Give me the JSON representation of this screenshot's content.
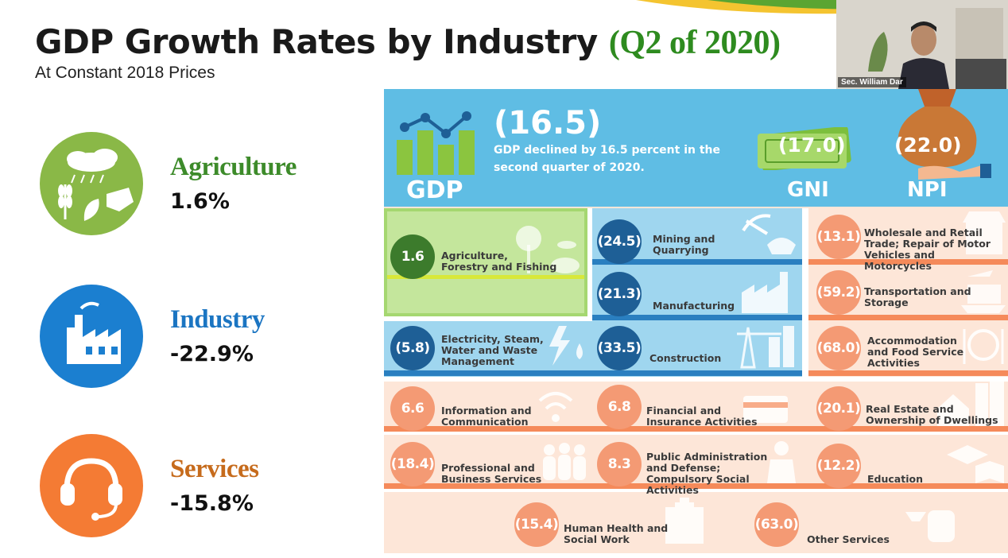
{
  "slide": {
    "title": "GDP Growth Rates by Industry",
    "title_period": "(Q2 of 2020)",
    "subtitle": "At Constant 2018 Prices"
  },
  "sectors": [
    {
      "name": "Agriculture",
      "value": "1.6%",
      "color": "#8ab847",
      "icon": "agriculture-icon"
    },
    {
      "name": "Industry",
      "value": "-22.9%",
      "color": "#1b7fd0",
      "icon": "factory-icon"
    },
    {
      "name": "Services",
      "value": "-15.8%",
      "color": "#f47b34",
      "icon": "headset-icon"
    }
  ],
  "video": {
    "speaker_name": "Sec. William Dar"
  },
  "infographic": {
    "gdp_value": "(16.5)",
    "gdp_description": "GDP declined by 16.5 percent in the second quarter of 2020.",
    "gdp_label": "GDP",
    "gni_value": "(17.0)",
    "gni_label": "GNI",
    "npi_value": "(22.0)",
    "npi_label": "NPI",
    "industries": [
      {
        "value": "1.6",
        "label": "Agriculture, Forestry and Fishing"
      },
      {
        "value": "(24.5)",
        "label": "Mining and Quarrying"
      },
      {
        "value": "(13.1)",
        "label": "Wholesale and Retail Trade; Repair of Motor Vehicles and Motorcycles"
      },
      {
        "value": "(21.3)",
        "label": "Manufacturing"
      },
      {
        "value": "(59.2)",
        "label": "Transportation and Storage"
      },
      {
        "value": "(5.8)",
        "label": "Electricity, Steam, Water and Waste Management"
      },
      {
        "value": "(33.5)",
        "label": "Construction"
      },
      {
        "value": "(68.0)",
        "label": "Accommodation and Food Service Activities"
      },
      {
        "value": "6.6",
        "label": "Information and Communication"
      },
      {
        "value": "6.8",
        "label": "Financial and Insurance Activities"
      },
      {
        "value": "(20.1)",
        "label": "Real Estate and Ownership of Dwellings"
      },
      {
        "value": "(18.4)",
        "label": "Professional and Business Services"
      },
      {
        "value": "8.3",
        "label": "Public Administration and Defense; Compulsory Social Activities"
      },
      {
        "value": "(12.2)",
        "label": "Education"
      },
      {
        "value": "(15.4)",
        "label": "Human Health and Social Work"
      },
      {
        "value": "(63.0)",
        "label": "Other Services"
      }
    ]
  },
  "colors": {
    "agri_bubble": "#3c7b2c",
    "industry_bubble": "#1e5f96",
    "services_bubble": "#f49a74",
    "title_accent": "#2e8b1f"
  }
}
